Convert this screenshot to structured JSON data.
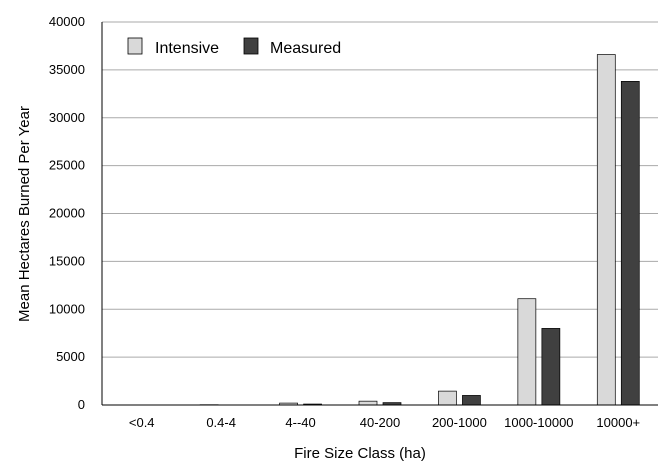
{
  "chart_data": {
    "type": "bar",
    "xlabel": "Fire Size Class (ha)",
    "ylabel": "Mean Hectares Burned Per Year",
    "ylim": [
      0,
      40000
    ],
    "yticks": [
      0,
      5000,
      10000,
      15000,
      20000,
      25000,
      30000,
      35000,
      40000
    ],
    "grid": "horizontal",
    "legend_position": "top-left",
    "categories": [
      "<0.4",
      "0.4-4",
      "4--40",
      "40-200",
      "200-1000",
      "1000-10000",
      "10000+"
    ],
    "series": [
      {
        "name": "Intensive",
        "color": "#d9d9d9",
        "values": [
          5,
          30,
          200,
          400,
          1450,
          11100,
          36600
        ]
      },
      {
        "name": "Measured",
        "color": "#404040",
        "values": [
          3,
          15,
          100,
          250,
          1000,
          8000,
          33800
        ]
      }
    ]
  }
}
